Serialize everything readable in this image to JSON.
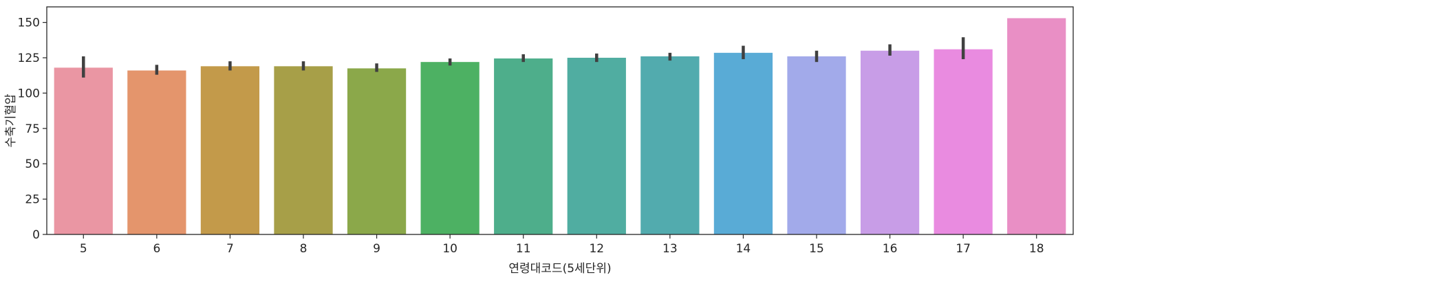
{
  "chart_data": {
    "type": "bar",
    "xlabel": "연령대코드(5세단위)",
    "ylabel": "수축기혈압",
    "ylim": [
      0,
      161
    ],
    "yticks": [
      0,
      25,
      50,
      75,
      100,
      125,
      150
    ],
    "grid": false,
    "categories": [
      "5",
      "6",
      "7",
      "8",
      "9",
      "10",
      "11",
      "12",
      "13",
      "14",
      "15",
      "16",
      "17",
      "18"
    ],
    "values": [
      118,
      116,
      119,
      119,
      117.5,
      122,
      124.5,
      125,
      126,
      128.5,
      126,
      130,
      131,
      153
    ],
    "error_low": [
      111,
      113,
      116,
      116,
      115,
      119.5,
      122,
      122,
      123,
      124,
      122,
      126.5,
      124,
      null
    ],
    "error_high": [
      126,
      120,
      122.5,
      122.5,
      121,
      124.5,
      127.5,
      128,
      128.5,
      133.5,
      130,
      134.5,
      139.5,
      null
    ],
    "colors": [
      "#ea96a3",
      "#e4956c",
      "#c39a4a",
      "#a79f48",
      "#8ba84a",
      "#4db163",
      "#4eae8b",
      "#50ada1",
      "#52abae",
      "#59abd6",
      "#a2aaea",
      "#c89de7",
      "#e98be0",
      "#e98fc5"
    ]
  }
}
